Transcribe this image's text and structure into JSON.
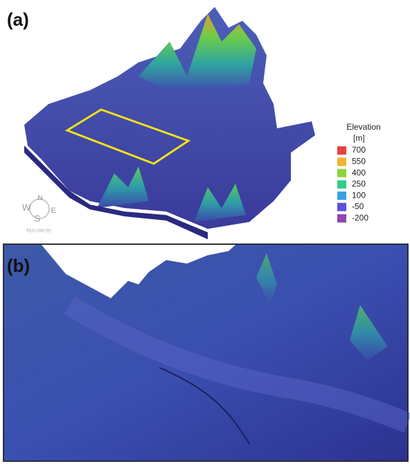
{
  "panels": [
    {
      "label": "(a)"
    },
    {
      "label": "(b)"
    }
  ],
  "legend": {
    "title": "Elevation",
    "unit": "[m]",
    "entries": [
      {
        "label": 700,
        "color": "#e8413f"
      },
      {
        "label": 550,
        "color": "#f2b233"
      },
      {
        "label": 400,
        "color": "#8fd43a"
      },
      {
        "label": 250,
        "color": "#2fcf8a"
      },
      {
        "label": 100,
        "color": "#3a9ee0"
      },
      {
        "label": -50,
        "color": "#5a4fe0"
      },
      {
        "label": -200,
        "color": "#9046b0"
      }
    ]
  },
  "compass": {
    "n": "N",
    "w": "W",
    "e": "E",
    "s": "S",
    "caption": "REFLOW (R)"
  }
}
